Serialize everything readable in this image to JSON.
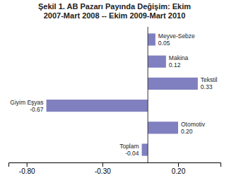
{
  "chart_data": {
    "type": "bar",
    "orientation": "horizontal",
    "title": "Şekil 1. AB Pazarı Payında Değişim: Ekim\n2007-Mart 2008 -- Ekim 2009-Mart 2010",
    "categories": [
      "Meyve-Sebze",
      "Makina",
      "Tekstil",
      "Giyim Eşyas",
      "Otomotiv",
      "Toplam"
    ],
    "values": [
      0.05,
      0.12,
      0.33,
      -0.67,
      0.2,
      -0.04
    ],
    "value_labels": [
      "0.05",
      "0.12",
      "0.33",
      "-0.67",
      "0.20",
      "-0.04"
    ],
    "data_labels": true,
    "color": "#8080c0",
    "xlim": [
      -0.92,
      0.48
    ],
    "xticks": [
      {
        "value": -0.8,
        "label": "-0.80"
      },
      {
        "value": -0.3,
        "label": "-0.30"
      },
      {
        "value": 0.2,
        "label": "0.20"
      }
    ],
    "grid": false
  }
}
